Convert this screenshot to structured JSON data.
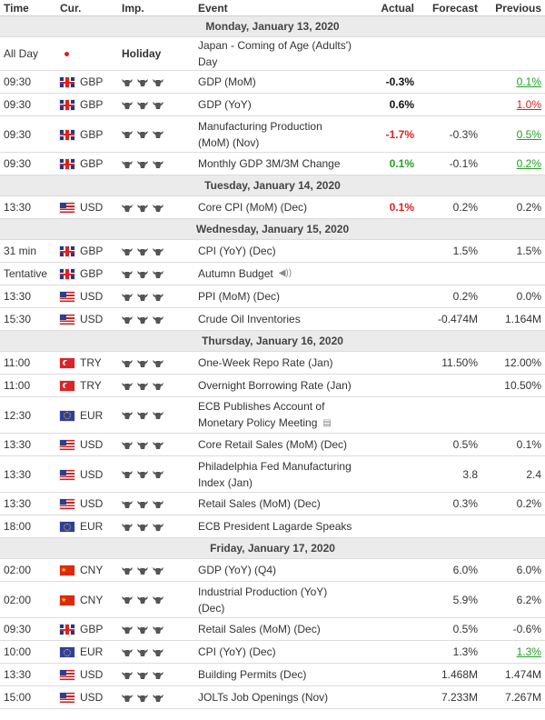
{
  "header": {
    "time": "Time",
    "cur": "Cur.",
    "imp": "Imp.",
    "event": "Event",
    "actual": "Actual",
    "forecast": "Forecast",
    "previous": "Previous"
  },
  "days": [
    {
      "label": "Monday, January 13, 2020",
      "events": [
        {
          "time": "All Day",
          "flag": "jp",
          "cur": "",
          "imp": "Holiday",
          "event": [
            "Japan - Coming of Age (Adults') Day"
          ],
          "actual": "",
          "actual_style": "",
          "forecast": "",
          "previous": "",
          "previous_style": ""
        },
        {
          "time": "09:30",
          "flag": "gb",
          "cur": "GBP",
          "imp": "3",
          "event": [
            "GDP (MoM)"
          ],
          "actual": "-0.3%",
          "actual_style": "bold",
          "forecast": "",
          "previous": "0.1%",
          "previous_style": "underline-green"
        },
        {
          "time": "09:30",
          "flag": "gb",
          "cur": "GBP",
          "imp": "3",
          "event": [
            "GDP (YoY)"
          ],
          "actual": "0.6%",
          "actual_style": "bold",
          "forecast": "",
          "previous": "1.0%",
          "previous_style": "underline-red"
        },
        {
          "time": "09:30",
          "flag": "gb",
          "cur": "GBP",
          "imp": "3",
          "event": [
            "Manufacturing Production",
            "(MoM) (Nov)"
          ],
          "actual": "-1.7%",
          "actual_style": "neg",
          "forecast": "-0.3%",
          "previous": "0.5%",
          "previous_style": "underline-green"
        },
        {
          "time": "09:30",
          "flag": "gb",
          "cur": "GBP",
          "imp": "3",
          "event": [
            "Monthly GDP 3M/3M Change"
          ],
          "actual": "0.1%",
          "actual_style": "pos",
          "forecast": "-0.1%",
          "previous": "0.2%",
          "previous_style": "underline-green"
        }
      ]
    },
    {
      "label": "Tuesday, January 14, 2020",
      "events": [
        {
          "time": "13:30",
          "flag": "us",
          "cur": "USD",
          "imp": "3",
          "event": [
            "Core CPI (MoM) (Dec)"
          ],
          "actual": "0.1%",
          "actual_style": "neg",
          "forecast": "0.2%",
          "previous": "0.2%",
          "previous_style": ""
        }
      ]
    },
    {
      "label": "Wednesday, January 15, 2020",
      "events": [
        {
          "time": "31 min",
          "flag": "gb",
          "cur": "GBP",
          "imp": "3",
          "event": [
            "CPI (YoY) (Dec)"
          ],
          "actual": "",
          "actual_style": "",
          "forecast": "1.5%",
          "previous": "1.5%",
          "previous_style": ""
        },
        {
          "time": "Tentative",
          "flag": "gb",
          "cur": "GBP",
          "imp": "3",
          "event": [
            "Autumn Budget"
          ],
          "icon": "speaker",
          "actual": "",
          "actual_style": "",
          "forecast": "",
          "previous": "",
          "previous_style": ""
        },
        {
          "time": "13:30",
          "flag": "us",
          "cur": "USD",
          "imp": "3",
          "event": [
            "PPI (MoM) (Dec)"
          ],
          "actual": "",
          "actual_style": "",
          "forecast": "0.2%",
          "previous": "0.0%",
          "previous_style": ""
        },
        {
          "time": "15:30",
          "flag": "us",
          "cur": "USD",
          "imp": "3",
          "event": [
            "Crude Oil Inventories"
          ],
          "actual": "",
          "actual_style": "",
          "forecast": "-0.474M",
          "previous": "1.164M",
          "previous_style": ""
        }
      ]
    },
    {
      "label": "Thursday, January 16, 2020",
      "events": [
        {
          "time": "11:00",
          "flag": "tr",
          "cur": "TRY",
          "imp": "3",
          "event": [
            "One-Week Repo Rate (Jan)"
          ],
          "actual": "",
          "actual_style": "",
          "forecast": "11.50%",
          "previous": "12.00%",
          "previous_style": ""
        },
        {
          "time": "11:00",
          "flag": "tr",
          "cur": "TRY",
          "imp": "3",
          "event": [
            "Overnight Borrowing Rate (Jan)"
          ],
          "actual": "",
          "actual_style": "",
          "forecast": "",
          "previous": "10.50%",
          "previous_style": ""
        },
        {
          "time": "12:30",
          "flag": "eu",
          "cur": "EUR",
          "imp": "3",
          "event": [
            "ECB Publishes Account of",
            "Monetary Policy Meeting"
          ],
          "icon": "doc",
          "actual": "",
          "actual_style": "",
          "forecast": "",
          "previous": "",
          "previous_style": ""
        },
        {
          "time": "13:30",
          "flag": "us",
          "cur": "USD",
          "imp": "3",
          "event": [
            "Core Retail Sales (MoM) (Dec)"
          ],
          "actual": "",
          "actual_style": "",
          "forecast": "0.5%",
          "previous": "0.1%",
          "previous_style": ""
        },
        {
          "time": "13:30",
          "flag": "us",
          "cur": "USD",
          "imp": "3",
          "event": [
            "Philadelphia Fed Manufacturing",
            "Index (Jan)"
          ],
          "actual": "",
          "actual_style": "",
          "forecast": "3.8",
          "previous": "2.4",
          "previous_style": ""
        },
        {
          "time": "13:30",
          "flag": "us",
          "cur": "USD",
          "imp": "3",
          "event": [
            "Retail Sales (MoM) (Dec)"
          ],
          "actual": "",
          "actual_style": "",
          "forecast": "0.3%",
          "previous": "0.2%",
          "previous_style": ""
        },
        {
          "time": "18:00",
          "flag": "eu",
          "cur": "EUR",
          "imp": "3",
          "event": [
            "ECB President Lagarde Speaks"
          ],
          "actual": "",
          "actual_style": "",
          "forecast": "",
          "previous": "",
          "previous_style": ""
        }
      ]
    },
    {
      "label": "Friday, January 17, 2020",
      "events": [
        {
          "time": "02:00",
          "flag": "cn",
          "cur": "CNY",
          "imp": "3",
          "event": [
            "GDP (YoY) (Q4)"
          ],
          "actual": "",
          "actual_style": "",
          "forecast": "6.0%",
          "previous": "6.0%",
          "previous_style": ""
        },
        {
          "time": "02:00",
          "flag": "cn",
          "cur": "CNY",
          "imp": "3",
          "event": [
            "Industrial Production (YoY)",
            "(Dec)"
          ],
          "actual": "",
          "actual_style": "",
          "forecast": "5.9%",
          "previous": "6.2%",
          "previous_style": ""
        },
        {
          "time": "09:30",
          "flag": "gb",
          "cur": "GBP",
          "imp": "3",
          "event": [
            "Retail Sales (MoM) (Dec)"
          ],
          "actual": "",
          "actual_style": "",
          "forecast": "0.5%",
          "previous": "-0.6%",
          "previous_style": ""
        },
        {
          "time": "10:00",
          "flag": "eu",
          "cur": "EUR",
          "imp": "3",
          "event": [
            "CPI (YoY) (Dec)"
          ],
          "actual": "",
          "actual_style": "",
          "forecast": "1.3%",
          "previous": "1.3%",
          "previous_style": "underline-green"
        },
        {
          "time": "13:30",
          "flag": "us",
          "cur": "USD",
          "imp": "3",
          "event": [
            "Building Permits (Dec)"
          ],
          "actual": "",
          "actual_style": "",
          "forecast": "1.468M",
          "previous": "1.474M",
          "previous_style": ""
        },
        {
          "time": "15:00",
          "flag": "us",
          "cur": "USD",
          "imp": "3",
          "event": [
            "JOLTs Job Openings (Nov)"
          ],
          "actual": "",
          "actual_style": "",
          "forecast": "7.233M",
          "previous": "7.267M",
          "previous_style": ""
        }
      ]
    }
  ]
}
